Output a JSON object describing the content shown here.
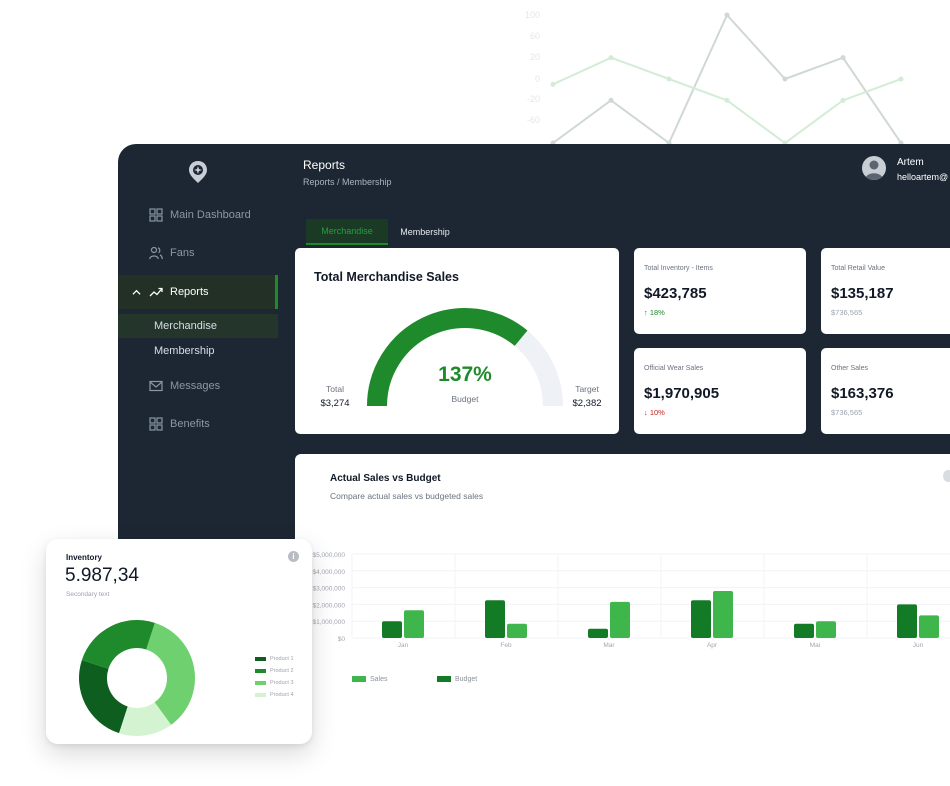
{
  "background_chart": {
    "y_ticks": [
      "100",
      "60",
      "20",
      "0",
      "-20",
      "-60"
    ],
    "series": [
      {
        "color": "#cfd8d2",
        "values": [
          -60,
          -20,
          -60,
          60,
          0,
          20,
          -60
        ]
      },
      {
        "color": "#d3ecd6",
        "values": [
          -5,
          20,
          0,
          -20,
          -60,
          -20,
          0
        ]
      }
    ]
  },
  "sidebar": {
    "items": [
      {
        "label": "Main Dashboard",
        "icon": "grid-icon"
      },
      {
        "label": "Fans",
        "icon": "users-icon"
      },
      {
        "label": "Reports",
        "icon": "trend-up-icon",
        "active": true,
        "expanded": true
      },
      {
        "label": "Messages",
        "icon": "mail-icon"
      },
      {
        "label": "Benefits",
        "icon": "grid-icon"
      }
    ],
    "subitems": [
      {
        "label": "Merchandise",
        "selected": true
      },
      {
        "label": "Membership"
      }
    ]
  },
  "header": {
    "title": "Reports",
    "breadcrumb": "Reports / Membership",
    "user_name": "Artem",
    "user_email": "helloartem@"
  },
  "tabs": [
    {
      "label": "Merchandise",
      "active": true
    },
    {
      "label": "Membership"
    }
  ],
  "gauge": {
    "title": "Total Merchandise Sales",
    "percent_label": "137%",
    "fill_fraction": 0.72,
    "center_label": "Budget",
    "total_label": "Total",
    "total_value": "$3,274",
    "target_label": "Target",
    "target_value": "$2,382"
  },
  "stats": [
    {
      "label": "Total Inventory - Items",
      "value": "$423,785",
      "sub": "18%",
      "trend": "up"
    },
    {
      "label": "Total Retail Value",
      "value": "$135,187",
      "sub": "$736,565"
    },
    {
      "label": "Official Wear Sales",
      "value": "$1,970,905",
      "sub": "10%",
      "trend": "down"
    },
    {
      "label": "Other Sales",
      "value": "$163,376",
      "sub": "$736,565"
    }
  ],
  "bar_chart": {
    "title": "Actual Sales vs Budget",
    "subtitle": "Compare actual sales vs budgeted sales"
  },
  "chart_data": {
    "type": "bar",
    "categories": [
      "Jan",
      "Feb",
      "Mar",
      "Apr",
      "Mai",
      "Jun"
    ],
    "y_tick_labels": [
      "$5,000,000",
      "$4,000,000",
      "$3,000,000",
      "$2,000,000",
      "$1,000,000",
      "$0"
    ],
    "ylim": [
      0,
      5000000
    ],
    "grid": true,
    "legend_position": "bottom-left",
    "series": [
      {
        "name": "Budget",
        "color": "#137a26",
        "values": [
          1000000,
          2250000,
          550000,
          2250000,
          850000,
          2000000
        ]
      },
      {
        "name": "Sales",
        "color": "#3fb64b",
        "values": [
          1650000,
          850000,
          2150000,
          2800000,
          1000000,
          1350000
        ]
      }
    ],
    "legend": [
      {
        "name": "Sales",
        "color": "#3fb64b"
      },
      {
        "name": "Budget",
        "color": "#137a26"
      }
    ]
  },
  "inventory": {
    "title": "Inventory",
    "value": "5.987,34",
    "secondary": "Secondary text",
    "info_icon": "i",
    "segments": [
      {
        "name": "Product 1",
        "value": 25,
        "color": "#0d5e1f"
      },
      {
        "name": "Product 2",
        "value": 25,
        "color": "#1f8a2b"
      },
      {
        "name": "Product 3",
        "value": 35,
        "color": "#6fd06f"
      },
      {
        "name": "Product 4",
        "value": 15,
        "color": "#d4f3d0"
      }
    ]
  }
}
